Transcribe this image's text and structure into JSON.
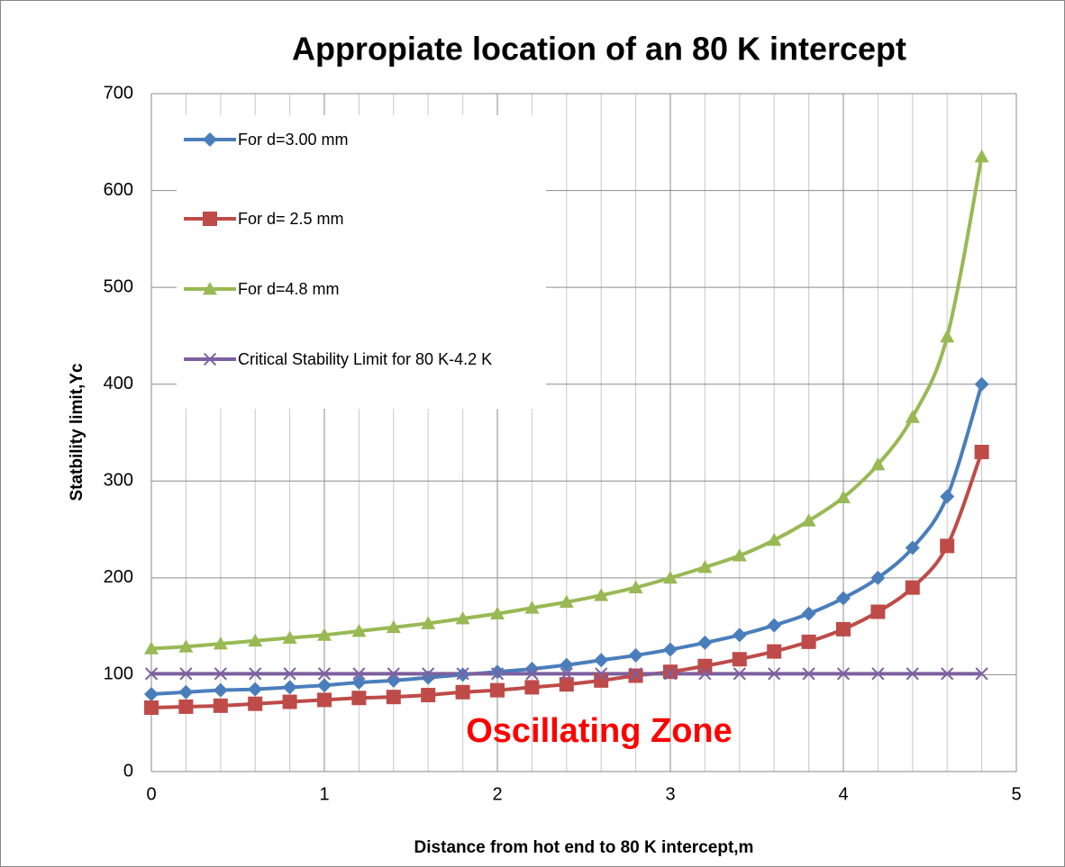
{
  "chart_data": {
    "type": "line",
    "title": "Appropiate location of an 80 K intercept",
    "x_label": "Distance from hot end to 80 K intercept,m",
    "y_label": "Statbility limit,Yc",
    "annotation": "Oscillating Zone",
    "annotation_color": "#ff0000",
    "x": [
      0,
      0.2,
      0.4,
      0.6,
      0.8,
      1.0,
      1.2,
      1.4,
      1.6,
      1.8,
      2.0,
      2.2,
      2.4,
      2.6,
      2.8,
      3.0,
      3.2,
      3.4,
      3.6,
      3.8,
      4.0,
      4.2,
      4.4,
      4.6,
      4.8
    ],
    "series": [
      {
        "name": "For d=3.00 mm",
        "color": "#4a7ebb",
        "marker": "diamond",
        "values": [
          80,
          82,
          84,
          85,
          87,
          89,
          92,
          94,
          97,
          100,
          103,
          106,
          110,
          115,
          120,
          126,
          133,
          141,
          151,
          163,
          179,
          200,
          231,
          284,
          400
        ]
      },
      {
        "name": "For d= 2.5 mm",
        "color": "#be4b48",
        "marker": "square",
        "values": [
          66,
          67,
          68,
          70,
          72,
          74,
          76,
          77,
          79,
          82,
          84,
          87,
          90,
          94,
          99,
          103,
          109,
          116,
          124,
          134,
          147,
          165,
          190,
          233,
          330
        ]
      },
      {
        "name": "For d=4.8 mm",
        "color": "#98b954",
        "marker": "triangle",
        "values": [
          127,
          129,
          132,
          135,
          138,
          141,
          145,
          149,
          153,
          158,
          163,
          169,
          175,
          182,
          190,
          200,
          211,
          223,
          239,
          259,
          283,
          317,
          366,
          449,
          635
        ]
      },
      {
        "name": "Critical Stability Limit for 80 K-4.2 K",
        "color": "#7d60a0",
        "marker": "x",
        "values": [
          101,
          101,
          101,
          101,
          101,
          101,
          101,
          101,
          101,
          101,
          101,
          101,
          101,
          101,
          101,
          101,
          101,
          101,
          101,
          101,
          101,
          101,
          101,
          101,
          101
        ]
      }
    ],
    "xlim": [
      0,
      5
    ],
    "xticks": [
      0,
      1,
      2,
      3,
      4,
      5
    ],
    "ylim": [
      0,
      700
    ],
    "yticks": [
      0,
      100,
      200,
      300,
      400,
      500,
      600,
      700
    ],
    "grid": true,
    "legend": "upper left"
  }
}
